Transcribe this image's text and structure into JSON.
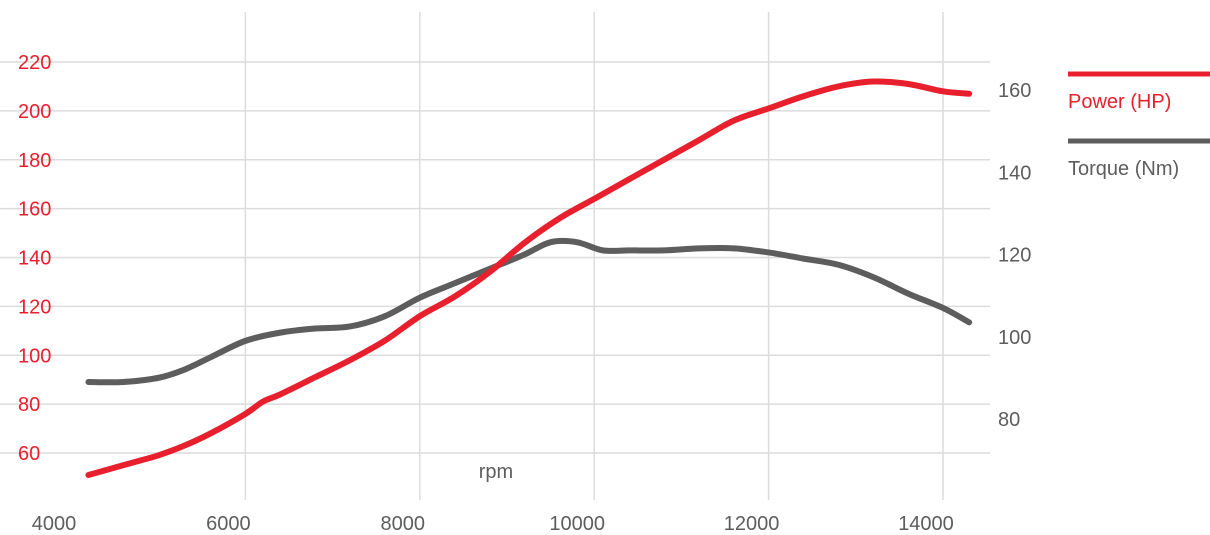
{
  "chart_data": {
    "type": "line",
    "title": "",
    "xlabel": "rpm",
    "x_ticks": [
      4000,
      6000,
      8000,
      10000,
      12000,
      14000
    ],
    "xlim": [
      4000,
      15000
    ],
    "y_left": {
      "ticks": [
        60,
        80,
        100,
        120,
        140,
        160,
        180,
        200,
        220
      ],
      "range": [
        48,
        225
      ],
      "color": "#e8202e"
    },
    "y_right": {
      "ticks": [
        80,
        100,
        120,
        140,
        160
      ],
      "range": [
        68,
        172
      ],
      "color": "#5d5d5d"
    },
    "grid": {
      "vertical": true,
      "horizontal": true
    },
    "legend_position": "top-right",
    "series": [
      {
        "name": "Power (HP)",
        "axis": "left",
        "color": "#e8202e",
        "points": [
          [
            4200,
            51
          ],
          [
            4500,
            54
          ],
          [
            4800,
            57
          ],
          [
            5000,
            59
          ],
          [
            5300,
            63
          ],
          [
            5600,
            68
          ],
          [
            6000,
            76
          ],
          [
            6200,
            81
          ],
          [
            6400,
            84
          ],
          [
            6800,
            91
          ],
          [
            7200,
            98
          ],
          [
            7600,
            106
          ],
          [
            8000,
            116
          ],
          [
            8400,
            124
          ],
          [
            8800,
            134
          ],
          [
            9200,
            146
          ],
          [
            9600,
            156
          ],
          [
            10000,
            164
          ],
          [
            10400,
            172
          ],
          [
            10800,
            180
          ],
          [
            11200,
            188
          ],
          [
            11600,
            196
          ],
          [
            12000,
            201
          ],
          [
            12400,
            206
          ],
          [
            12800,
            210
          ],
          [
            13200,
            212
          ],
          [
            13600,
            211
          ],
          [
            14000,
            208
          ],
          [
            14300,
            207
          ]
        ]
      },
      {
        "name": "Torque (Nm)",
        "axis": "right",
        "color": "#5d5d5d",
        "points": [
          [
            4200,
            89
          ],
          [
            4600,
            89
          ],
          [
            5000,
            90
          ],
          [
            5300,
            92
          ],
          [
            5600,
            95
          ],
          [
            6000,
            99
          ],
          [
            6400,
            101
          ],
          [
            6800,
            102
          ],
          [
            7200,
            102.5
          ],
          [
            7600,
            105
          ],
          [
            8000,
            109.5
          ],
          [
            8400,
            113
          ],
          [
            8800,
            116.5
          ],
          [
            9200,
            120
          ],
          [
            9500,
            123
          ],
          [
            9800,
            123
          ],
          [
            10100,
            121
          ],
          [
            10400,
            121
          ],
          [
            10800,
            121
          ],
          [
            11200,
            121.5
          ],
          [
            11600,
            121.5
          ],
          [
            12000,
            120.5
          ],
          [
            12400,
            119
          ],
          [
            12800,
            117.5
          ],
          [
            13200,
            114.5
          ],
          [
            13600,
            110.5
          ],
          [
            14000,
            107
          ],
          [
            14300,
            103.5
          ]
        ]
      }
    ]
  }
}
